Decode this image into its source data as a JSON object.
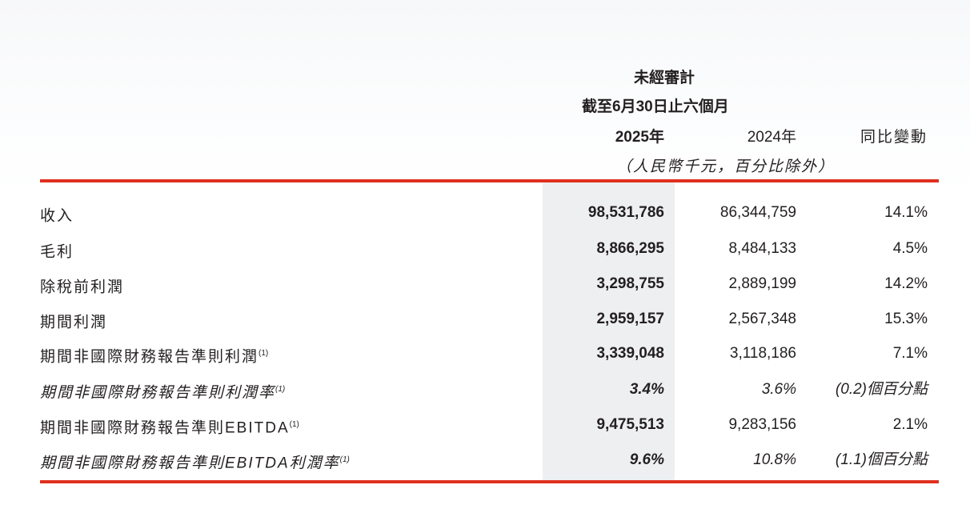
{
  "header": {
    "audit_status": "未經審計",
    "period": "截至6月30日止六個月",
    "columns": [
      "2025年",
      "2024年",
      "同比變動"
    ],
    "units": "（人民幣千元，百分比除外）"
  },
  "colors": {
    "accent_red": "#e0301e",
    "highlight_column": "#eeeff1"
  },
  "rows": [
    {
      "label": "收入",
      "note": "",
      "italic": false,
      "y2025": "98,531,786",
      "y2024": "86,344,759",
      "change": "14.1%"
    },
    {
      "label": "毛利",
      "note": "",
      "italic": false,
      "y2025": "8,866,295",
      "y2024": "8,484,133",
      "change": "4.5%"
    },
    {
      "label": "除稅前利潤",
      "note": "",
      "italic": false,
      "y2025": "3,298,755",
      "y2024": "2,889,199",
      "change": "14.2%"
    },
    {
      "label": "期間利潤",
      "note": "",
      "italic": false,
      "y2025": "2,959,157",
      "y2024": "2,567,348",
      "change": "15.3%"
    },
    {
      "label": "期間非國際財務報告準則利潤",
      "note": "(1)",
      "italic": false,
      "y2025": "3,339,048",
      "y2024": "3,118,186",
      "change": "7.1%"
    },
    {
      "label": "期間非國際財務報告準則利潤率",
      "note": "(1)",
      "italic": true,
      "y2025": "3.4%",
      "y2024": "3.6%",
      "change": "(0.2)個百分點"
    },
    {
      "label": "期間非國際財務報告準則EBITDA",
      "note": "(1)",
      "italic": false,
      "y2025": "9,475,513",
      "y2024": "9,283,156",
      "change": "2.1%"
    },
    {
      "label": "期間非國際財務報告準則EBITDA利潤率",
      "note": "(1)",
      "italic": true,
      "y2025": "9.6%",
      "y2024": "10.8%",
      "change": "(1.1)個百分點"
    }
  ]
}
